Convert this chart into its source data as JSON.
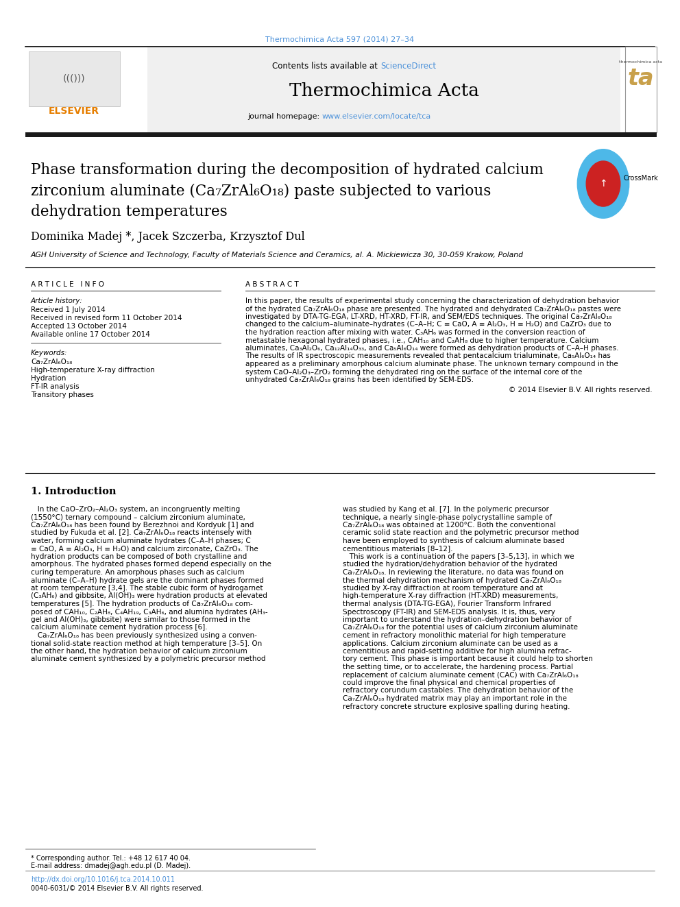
{
  "page_width": 9.92,
  "page_height": 13.23,
  "bg_color": "#ffffff",
  "top_citation": "Thermochimica Acta 597 (2014) 27–34",
  "top_citation_color": "#4a90d9",
  "journal_homepage_color": "#4a90d9",
  "article_info_title": "A R T I C L E   I N F O",
  "abstract_title": "A B S T R A C T",
  "article_history_label": "Article history:",
  "received": "Received 1 July 2014",
  "received_revised": "Received in revised form 11 October 2014",
  "accepted": "Accepted 13 October 2014",
  "available_online": "Available online 17 October 2014",
  "keywords_label": "Keywords:",
  "keywords": [
    "Ca₇ZrAl₆O₁₈",
    "High-temperature X-ray diffraction",
    "Hydration",
    "FT-IR analysis",
    "Transitory phases"
  ],
  "affiliation": "AGH University of Science and Technology, Faculty of Materials Science and Ceramics, al. A. Mickiewicza 30, 30-059 Krakow, Poland",
  "copyright": "© 2014 Elsevier B.V. All rights reserved.",
  "intro_title": "1. Introduction",
  "footer_text1": "* Corresponding author. Tel.: +48 12 617 40 04.",
  "footer_text2": "E-mail address: dmadej@agh.edu.pl (D. Madej).",
  "footer_doi": "http://dx.doi.org/10.1016/j.tca.2014.10.011",
  "footer_issn": "0040-6031/© 2014 Elsevier B.V. All rights reserved.",
  "elsevier_color": "#e67e00",
  "thick_bar_color": "#1a1a1a",
  "abstract_lines": [
    "In this paper, the results of experimental study concerning the characterization of dehydration behavior",
    "of the hydrated Ca₇ZrAl₆O₁₈ phase are presented. The hydrated and dehydrated Ca₇ZrAl₆O₁₈ pastes were",
    "investigated by DTA-TG-EGA, LT-XRD, HT-XRD, FT-IR, and SEM/EDS techniques. The original Ca₇ZrAl₆O₁₈",
    "changed to the calcium–aluminate–hydrates (C–A–H; C ≡ CaO, A ≡ Al₂O₃, H ≡ H₂O) and CaZrO₃ due to",
    "the hydration reaction after mixing with water. C₃AH₆ was formed in the conversion reaction of",
    "metastable hexagonal hydrated phases, i.e., CAH₁₀ and C₂AH₈ due to higher temperature. Calcium",
    "aluminates, Ca₃Al₂O₆, Ca₁₂Al₁₄O₃₃, and Ca₅Al₆O₁₄ were formed as dehydration products of C–A–H phases.",
    "The results of IR spectroscopic measurements revealed that pentacalcium trialuminate, Ca₅Al₆O₁₄ has",
    "appeared as a preliminary amorphous calcium aluminate phase. The unknown ternary compound in the",
    "system CaO–Al₂O₃–ZrO₂ forming the dehydrated ring on the surface of the internal core of the",
    "unhydrated Ca₇ZrAl₆O₁₈ grains has been identified by SEM-EDS."
  ],
  "intro_col1_lines": [
    "   In the CaO–ZrO₂–Al₂O₃ system, an incongruently melting",
    "(1550°C) ternary compound – calcium zirconium aluminate,",
    "Ca₇ZrAl₆O₁₈ has been found by Berezhnoi and Kordyuk [1] and",
    "studied by Fukuda et al. [2]. Ca₇ZrAl₆O₁₈ reacts intensely with",
    "water, forming calcium aluminate hydrates (C–A–H phases; C",
    "≡ CaO, A ≡ Al₂O₃, H ≡ H₂O) and calcium zirconate, CaZrO₃. The",
    "hydration products can be composed of both crystalline and",
    "amorphous. The hydrated phases formed depend especially on the",
    "curing temperature. An amorphous phases such as calcium",
    "aluminate (C–A–H) hydrate gels are the dominant phases formed",
    "at room temperature [3,4]. The stable cubic form of hydrogarnet",
    "(C₃AH₆) and gibbsite, Al(OH)₃ were hydration products at elevated",
    "temperatures [5]. The hydration products of Ca₇ZrAl₆O₁₈ com-",
    "posed of CAH₁₀, C₂AH₈, C₄AH₁₉, C₃AH₆, and alumina hydrates (AH₃-",
    "gel and Al(OH)₃, gibbsite) were similar to those formed in the",
    "calcium aluminate cement hydration process [6].",
    "   Ca₇ZrAl₆O₁₈ has been previously synthesized using a conven-",
    "tional solid-state reaction method at high temperature [3–5]. On",
    "the other hand, the hydration behavior of calcium zirconium",
    "aluminate cement synthesized by a polymetric precursor method"
  ],
  "intro_col2_lines": [
    "was studied by Kang et al. [7]. In the polymeric precursor",
    "technique, a nearly single-phase polycrystalline sample of",
    "Ca₇ZrAl₆O₁₈ was obtained at 1200°C. Both the conventional",
    "ceramic solid state reaction and the polymetric precursor method",
    "have been employed to synthesis of calcium aluminate based",
    "cementitious materials [8–12].",
    "   This work is a continuation of the papers [3–5,13], in which we",
    "studied the hydration/dehydration behavior of the hydrated",
    "Ca₇ZrAl₆O₁₈. In reviewing the literature, no data was found on",
    "the thermal dehydration mechanism of hydrated Ca₇ZrAl₆O₁₈",
    "studied by X-ray diffraction at room temperature and at",
    "high-temperature X-ray diffraction (HT-XRD) measurements,",
    "thermal analysis (DTA-TG-EGA), Fourier Transform Infrared",
    "Spectroscopy (FT-IR) and SEM-EDS analysis. It is, thus, very",
    "important to understand the hydration–dehydration behavior of",
    "Ca₇ZrAl₆O₁₈ for the potential uses of calcium zirconium aluminate",
    "cement in refractory monolithic material for high temperature",
    "applications. Calcium zirconium aluminate can be used as a",
    "cementitious and rapid-setting additive for high alumina refrac-",
    "tory cement. This phase is important because it could help to shorten",
    "the setting time, or to accelerate, the hardening process. Partial",
    "replacement of calcium aluminate cement (CAC) with Ca₇ZrAl₆O₁₈",
    "could improve the final physical and chemical properties of",
    "refractory corundum castables. The dehydration behavior of the",
    "Ca₇ZrAl₆O₁₈ hydrated matrix may play an important role in the",
    "refractory concrete structure explosive spalling during heating."
  ]
}
